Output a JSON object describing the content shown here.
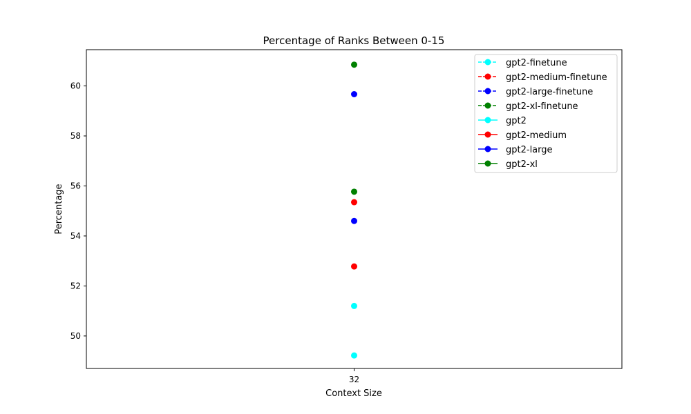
{
  "chart_data": {
    "type": "line",
    "title": "Percentage of Ranks Between 0-15",
    "xlabel": "Context Size",
    "ylabel": "Percentage",
    "categories": [
      "32"
    ],
    "ylim": [
      48.7,
      61.45
    ],
    "yticks": [
      50,
      52,
      54,
      56,
      58,
      60
    ],
    "grid": false,
    "legend_position": "top-right",
    "series": [
      {
        "name": "gpt2-finetune",
        "values": [
          51.2
        ],
        "color": "#00ffff",
        "linestyle": "dashed"
      },
      {
        "name": "gpt2-medium-finetune",
        "values": [
          55.35
        ],
        "color": "#ff0000",
        "linestyle": "dashed"
      },
      {
        "name": "gpt2-large-finetune",
        "values": [
          59.67
        ],
        "color": "#0000ff",
        "linestyle": "dashed"
      },
      {
        "name": "gpt2-xl-finetune",
        "values": [
          60.85
        ],
        "color": "#008000",
        "linestyle": "dashed"
      },
      {
        "name": "gpt2",
        "values": [
          49.22
        ],
        "color": "#00ffff",
        "linestyle": "solid"
      },
      {
        "name": "gpt2-medium",
        "values": [
          52.78
        ],
        "color": "#ff0000",
        "linestyle": "solid"
      },
      {
        "name": "gpt2-large",
        "values": [
          54.6
        ],
        "color": "#0000ff",
        "linestyle": "solid"
      },
      {
        "name": "gpt2-xl",
        "values": [
          55.77
        ],
        "color": "#008000",
        "linestyle": "solid"
      }
    ]
  }
}
